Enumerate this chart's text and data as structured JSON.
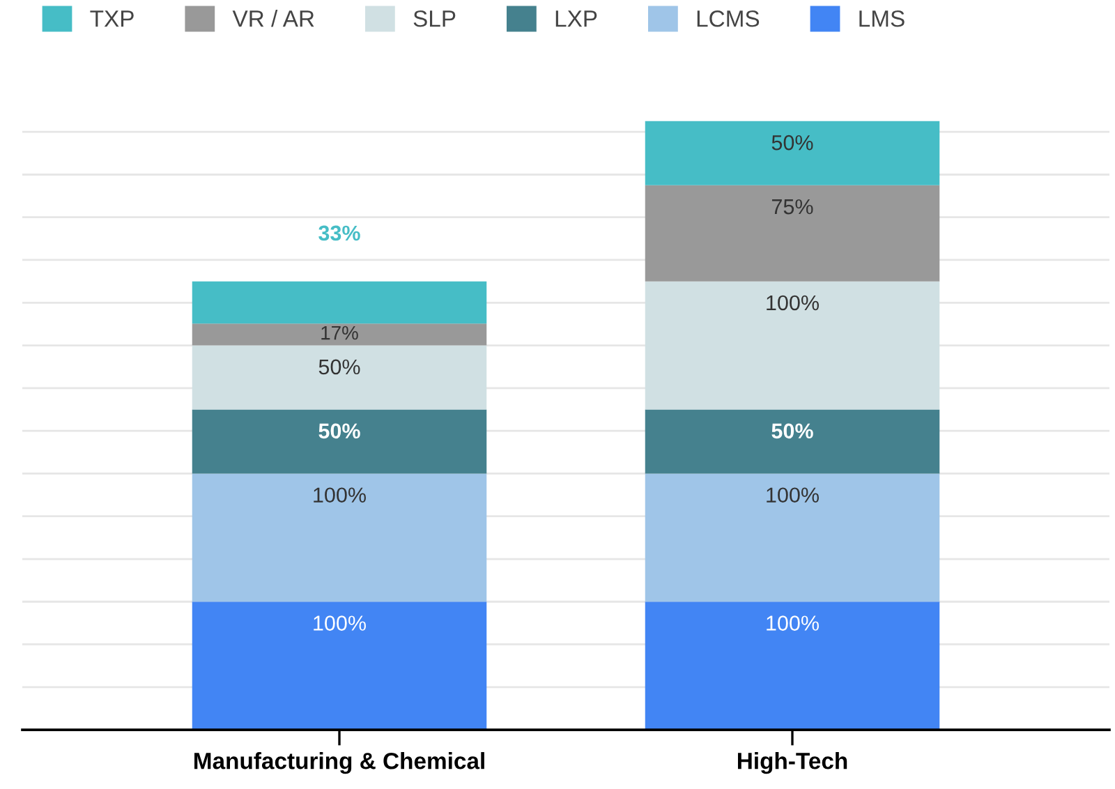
{
  "chart_data": {
    "type": "bar",
    "stacked": true,
    "categories": [
      "Manufacturing & Chemical",
      "High-Tech"
    ],
    "series": [
      {
        "name": "LMS",
        "color": "#4285f4",
        "values": [
          100,
          100
        ],
        "value_labels": [
          "100%",
          "100%"
        ]
      },
      {
        "name": "LCMS",
        "color": "#9fc5e8",
        "values": [
          100,
          100
        ],
        "value_labels": [
          "100%",
          "100%"
        ]
      },
      {
        "name": "LXP",
        "color": "#45818e",
        "values": [
          50,
          50
        ],
        "value_labels": [
          "50%",
          "50%"
        ]
      },
      {
        "name": "SLP",
        "color": "#d0e0e3",
        "values": [
          50,
          100
        ],
        "value_labels": [
          "50%",
          "100%"
        ]
      },
      {
        "name": "VR / AR",
        "color": "#999999",
        "values": [
          17,
          75
        ],
        "value_labels": [
          "17%",
          "75%"
        ]
      },
      {
        "name": "TXP",
        "color": "#46bdc6",
        "values": [
          33,
          50
        ],
        "value_labels": [
          "33%",
          "50%"
        ]
      }
    ],
    "yticks": [
      {
        "value": 33.3,
        "label": null
      },
      {
        "value": 66.7,
        "label": null
      },
      {
        "value": 100,
        "label": null
      },
      {
        "value": 133.3,
        "label": null
      },
      {
        "value": 166.7,
        "label": null
      },
      {
        "value": 200,
        "label": null
      },
      {
        "value": 233.3,
        "label": null
      },
      {
        "value": 266.7,
        "label": null
      },
      {
        "value": 300,
        "label": null
      },
      {
        "value": 333.3,
        "label": null
      },
      {
        "value": 366.7,
        "label": null
      },
      {
        "value": 400,
        "label": null
      },
      {
        "value": 433.3,
        "label": null
      },
      {
        "value": 466.7,
        "label": null
      }
    ],
    "grid": "y",
    "legend": "top",
    "tick_labels": "x"
  }
}
